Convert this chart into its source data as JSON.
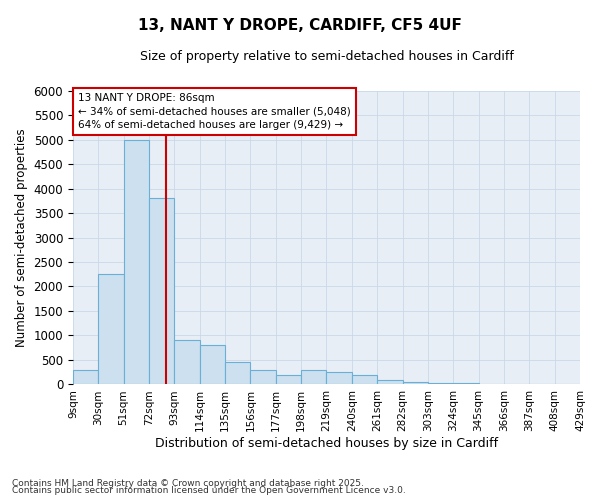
{
  "title": "13, NANT Y DROPE, CARDIFF, CF5 4UF",
  "subtitle": "Size of property relative to semi-detached houses in Cardiff",
  "xlabel": "Distribution of semi-detached houses by size in Cardiff",
  "ylabel": "Number of semi-detached properties",
  "footnote1": "Contains HM Land Registry data © Crown copyright and database right 2025.",
  "footnote2": "Contains public sector information licensed under the Open Government Licence v3.0.",
  "property_label": "13 NANT Y DROPE: 86sqm",
  "smaller_label": "← 34% of semi-detached houses are smaller (5,048)",
  "larger_label": "64% of semi-detached houses are larger (9,429) →",
  "property_value": 86,
  "bar_color": "#cce0f0",
  "bar_edge_color": "#6aafd6",
  "vline_color": "#cc0000",
  "box_edge_color": "#cc0000",
  "grid_color": "#c8d8e8",
  "background_color": "#e8eef5",
  "ylim_max": 6000,
  "ytick_step": 500,
  "bin_edges": [
    9,
    30,
    51,
    72,
    93,
    114,
    135,
    156,
    177,
    198,
    219,
    240,
    261,
    282,
    303,
    324,
    345,
    366,
    387,
    408,
    429
  ],
  "bin_labels": [
    "9sqm",
    "30sqm",
    "51sqm",
    "72sqm",
    "93sqm",
    "114sqm",
    "135sqm",
    "156sqm",
    "177sqm",
    "198sqm",
    "219sqm",
    "240sqm",
    "261sqm",
    "282sqm",
    "303sqm",
    "324sqm",
    "345sqm",
    "366sqm",
    "387sqm",
    "408sqm",
    "429sqm"
  ],
  "bar_heights": [
    300,
    2250,
    5000,
    3800,
    900,
    800,
    450,
    300,
    200,
    300,
    250,
    200,
    100,
    50,
    30,
    20,
    10,
    5,
    2,
    0
  ]
}
